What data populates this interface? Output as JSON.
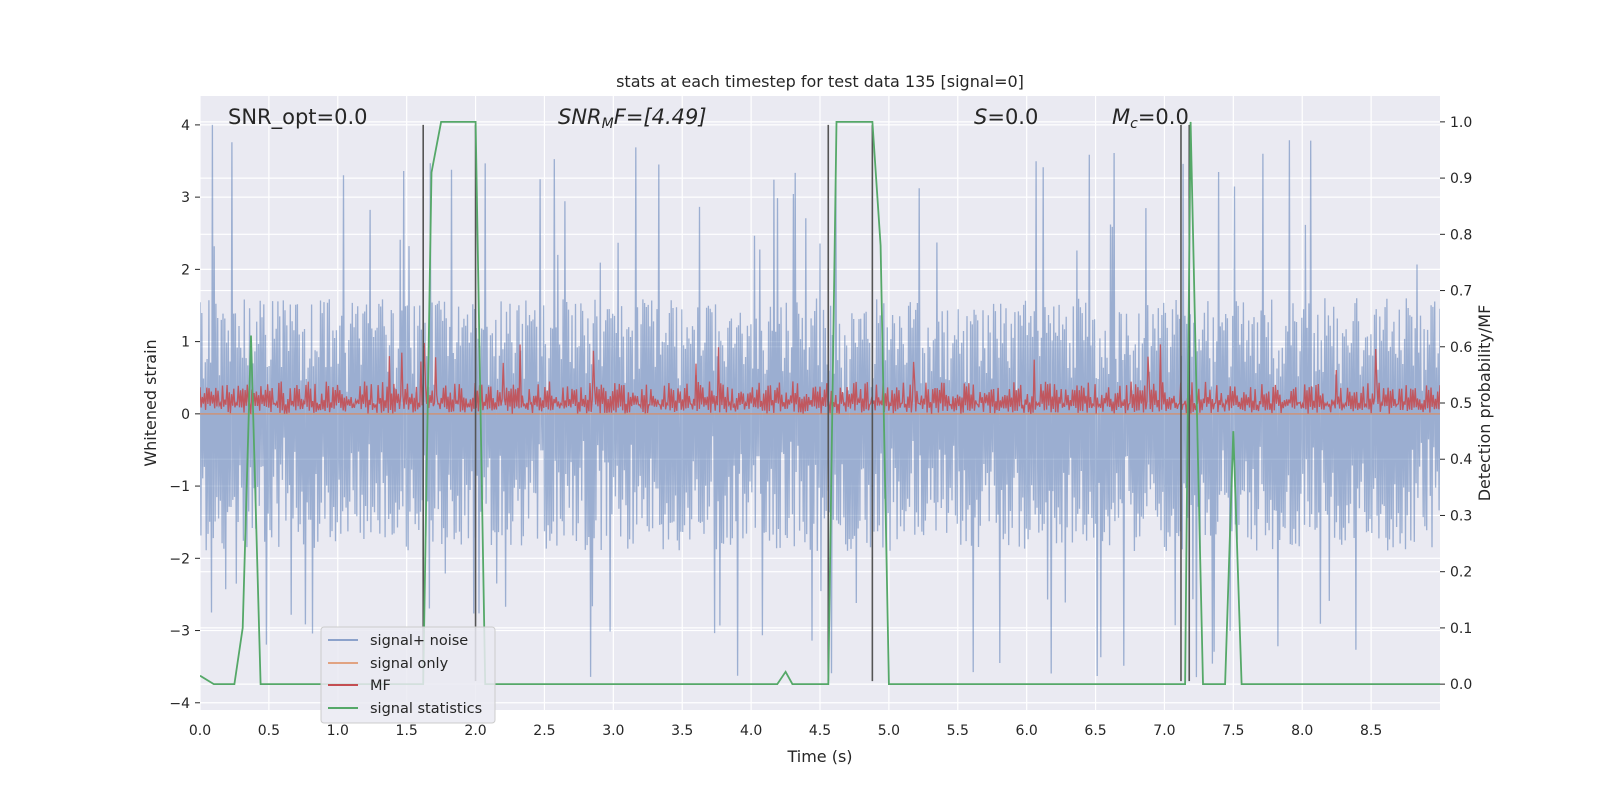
{
  "chart_data": {
    "type": "line",
    "title": "stats at each timestep for test data 135 [signal=0]",
    "xlabel": "Time (s)",
    "ylabel": "Whitened strain",
    "y2label": "Detection probability/MF",
    "xlim": [
      0.0,
      9.0
    ],
    "ylim": [
      -4.1,
      4.4
    ],
    "y2lim": [
      -0.046,
      1.046
    ],
    "xticks": [
      "0.0",
      "0.5",
      "1.0",
      "1.5",
      "2.0",
      "2.5",
      "3.0",
      "3.5",
      "4.0",
      "4.5",
      "5.0",
      "5.5",
      "6.0",
      "6.5",
      "7.0",
      "7.5",
      "8.0",
      "8.5"
    ],
    "xtick_values": [
      0.0,
      0.5,
      1.0,
      1.5,
      2.0,
      2.5,
      3.0,
      3.5,
      4.0,
      4.5,
      5.0,
      5.5,
      6.0,
      6.5,
      7.0,
      7.5,
      8.0,
      8.5
    ],
    "yticks": [
      "−4",
      "−3",
      "−2",
      "−1",
      "0",
      "1",
      "2",
      "3",
      "4"
    ],
    "ytick_values": [
      -4,
      -3,
      -2,
      -1,
      0,
      1,
      2,
      3,
      4
    ],
    "y2ticks": [
      "0.0",
      "0.1",
      "0.2",
      "0.3",
      "0.4",
      "0.5",
      "0.6",
      "0.7",
      "0.8",
      "0.9",
      "1.0"
    ],
    "y2tick_values": [
      0.0,
      0.1,
      0.2,
      0.3,
      0.4,
      0.5,
      0.6,
      0.7,
      0.8,
      0.9,
      1.0
    ],
    "grid": true,
    "legend_position": "lower-left",
    "annotations": {
      "snr_opt": "SNR_opt=0.0",
      "snr_mf_main": "SNR",
      "snr_mf_sub": "M",
      "snr_mf_rest": "F=[4.49]",
      "s_main": "S",
      "s_rest": "=0.0",
      "mc_main": "M",
      "mc_sub": "c",
      "mc_rest": "=0.0"
    },
    "series": [
      {
        "name": "signal+ noise",
        "color": "#4c72b0",
        "axis": "left",
        "noise_band": {
          "lower_typical": -1.9,
          "upper_typical": 1.6,
          "max_peak": 4.0,
          "min_peak": -3.75
        }
      },
      {
        "name": "signal only",
        "color": "#dd8452",
        "axis": "left",
        "x": [
          0.0,
          9.0
        ],
        "y": [
          0.0,
          0.0
        ]
      },
      {
        "name": "MF",
        "color": "#c44e52",
        "axis": "left",
        "band": {
          "lower": 0.0,
          "typical_upper": 0.45,
          "max_peak": 1.0
        }
      },
      {
        "name": "signal statistics",
        "color": "#55a868",
        "axis": "right",
        "x": [
          0.0,
          0.1,
          0.25,
          0.31,
          0.37,
          0.44,
          1.62,
          1.68,
          1.75,
          2.0,
          2.07,
          4.19,
          4.25,
          4.3,
          4.56,
          4.62,
          4.88,
          4.94,
          5.0,
          7.15,
          7.19,
          7.23,
          7.28,
          7.33,
          7.44,
          7.5,
          7.56,
          9.0
        ],
        "y": [
          0.015,
          0.0,
          0.0,
          0.1,
          0.62,
          0.0,
          0.0,
          0.91,
          1.0,
          1.0,
          0.0,
          0.0,
          0.022,
          0.0,
          0.0,
          1.0,
          1.0,
          0.78,
          0.0,
          0.0,
          1.0,
          0.55,
          0.0,
          0.0,
          0.0,
          0.45,
          0.0,
          0.0
        ]
      }
    ],
    "vertical_markers": {
      "color": "#555555",
      "x": [
        1.62,
        2.0,
        4.56,
        4.88,
        7.12,
        7.18
      ],
      "ymin": -3.7,
      "ymax": 4.0
    }
  }
}
